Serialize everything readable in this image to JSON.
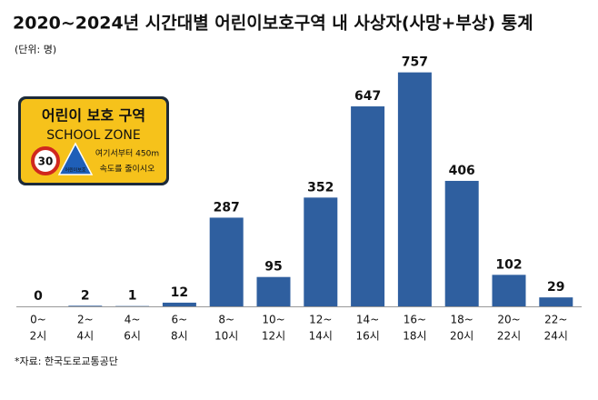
{
  "chart_data": {
    "type": "bar",
    "title": "2020~2024년 시간대별 어린이보호구역 내 사상자(사망+부상) 통계",
    "subtitle": "(단위: 명)",
    "source": "*자료: 한국도로교통공단",
    "categories": [
      [
        "0~",
        "2시"
      ],
      [
        "2~",
        "4시"
      ],
      [
        "4~",
        "6시"
      ],
      [
        "6~",
        "8시"
      ],
      [
        "8~",
        "10시"
      ],
      [
        "10~",
        "12시"
      ],
      [
        "12~",
        "14시"
      ],
      [
        "14~",
        "16시"
      ],
      [
        "16~",
        "18시"
      ],
      [
        "18~",
        "20시"
      ],
      [
        "20~",
        "22시"
      ],
      [
        "22~",
        "24시"
      ]
    ],
    "values": [
      0,
      2,
      1,
      12,
      287,
      95,
      352,
      647,
      757,
      406,
      102,
      29
    ],
    "color": "#2f5f9f",
    "sign": {
      "title": "어린이 보호 구역",
      "subtitle": "SCHOOL ZONE",
      "speed": "30",
      "zone": "어린이보호",
      "line1": "여기서부터 450m",
      "line2": "속도를 줄이시오"
    }
  }
}
